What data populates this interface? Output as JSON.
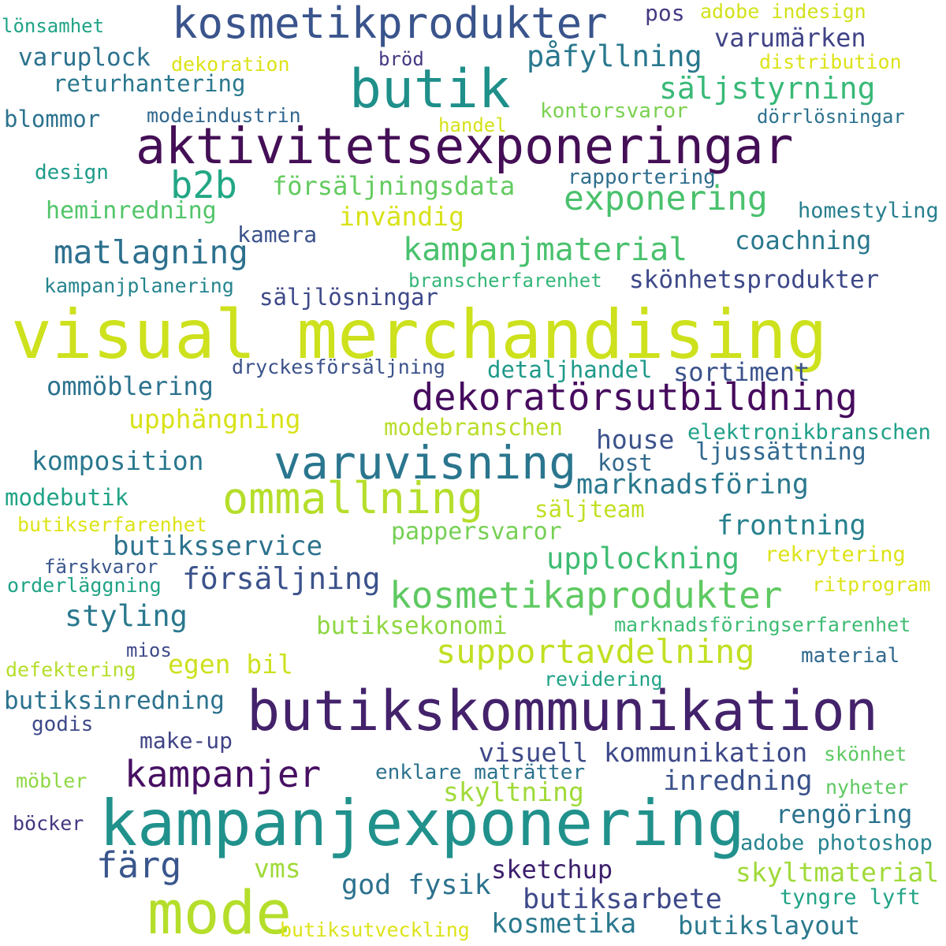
{
  "words": [
    {
      "text": "visual merchandising",
      "color": "#cde11d"
    },
    {
      "text": "aktivitetsexponeringar",
      "color": "#440f56"
    },
    {
      "text": "butikskommunikation",
      "color": "#43226b"
    },
    {
      "text": "kampanjexponering",
      "color": "#21918c"
    },
    {
      "text": "butik",
      "color": "#1f8f8a"
    },
    {
      "text": "kosmetikprodukter",
      "color": "#3a548c"
    },
    {
      "text": "mode",
      "color": "#b5de2b"
    },
    {
      "text": "varuvisning",
      "color": "#2a768e"
    },
    {
      "text": "ommallning",
      "color": "#b5de2b"
    },
    {
      "text": "dekoratörsutbildning",
      "color": "#460b5e"
    },
    {
      "text": "kosmetikaprodukter",
      "color": "#5ec962"
    },
    {
      "text": "supportavdelning",
      "color": "#c2df23"
    },
    {
      "text": "matlagning",
      "color": "#2d708e"
    },
    {
      "text": "kampanjmaterial",
      "color": "#49c16d"
    },
    {
      "text": "exponering",
      "color": "#4ac16d"
    },
    {
      "text": "b2b",
      "color": "#22a785"
    },
    {
      "text": "kampanjer",
      "color": "#471063"
    },
    {
      "text": "färg",
      "color": "#39568c"
    },
    {
      "text": "påfyllning",
      "color": "#2a788e"
    },
    {
      "text": "säljstyrning",
      "color": "#38b977"
    },
    {
      "text": "varumärken",
      "color": "#414487"
    },
    {
      "text": "varuplock",
      "color": "#2c728e"
    },
    {
      "text": "returhantering",
      "color": "#2a788e"
    },
    {
      "text": "blommor",
      "color": "#2c728e"
    },
    {
      "text": "lönsamhet",
      "color": "#20a386"
    },
    {
      "text": "pos",
      "color": "#443a83"
    },
    {
      "text": "adobe indesign",
      "color": "#d2e21b"
    },
    {
      "text": "dekoration",
      "color": "#dde318"
    },
    {
      "text": "bröd",
      "color": "#453781"
    },
    {
      "text": "distribution",
      "color": "#dde318"
    },
    {
      "text": "modeindustrin",
      "color": "#31678e"
    },
    {
      "text": "handel",
      "color": "#d5e21a"
    },
    {
      "text": "kontorsvaror",
      "color": "#7ad151"
    },
    {
      "text": "dörrlösningar",
      "color": "#2c728e"
    },
    {
      "text": "design",
      "color": "#1e9b8a"
    },
    {
      "text": "försäljningsdata",
      "color": "#63cb5f"
    },
    {
      "text": "rapportering",
      "color": "#2e6e8e"
    },
    {
      "text": "heminredning",
      "color": "#52c569"
    },
    {
      "text": "invändig",
      "color": "#d8e219"
    },
    {
      "text": "homestyling",
      "color": "#277f8e"
    },
    {
      "text": "kamera",
      "color": "#3b528b"
    },
    {
      "text": "coachning",
      "color": "#2a788e"
    },
    {
      "text": "kampanjplanering",
      "color": "#25848e"
    },
    {
      "text": "branscherfarenhet",
      "color": "#35b779"
    },
    {
      "text": "skönhetsprodukter",
      "color": "#3e4989"
    },
    {
      "text": "säljlösningar",
      "color": "#3e4989"
    },
    {
      "text": "dryckesförsäljning",
      "color": "#3b528b"
    },
    {
      "text": "detaljhandel",
      "color": "#1f9a8a"
    },
    {
      "text": "sortiment",
      "color": "#3b528b"
    },
    {
      "text": "ommöblering",
      "color": "#2c728e"
    },
    {
      "text": "upphängning",
      "color": "#d8e219"
    },
    {
      "text": "modebranschen",
      "color": "#b8de29"
    },
    {
      "text": "house",
      "color": "#3b528b"
    },
    {
      "text": "elektronikbranschen",
      "color": "#1fa088"
    },
    {
      "text": "kost",
      "color": "#31688e"
    },
    {
      "text": "ljussättning",
      "color": "#31688e"
    },
    {
      "text": "komposition",
      "color": "#2a788e"
    },
    {
      "text": "marknadsföring",
      "color": "#2a788e"
    },
    {
      "text": "modebutik",
      "color": "#20a386"
    },
    {
      "text": "säljteam",
      "color": "#c2df23"
    },
    {
      "text": "butikserfarenhet",
      "color": "#dde318"
    },
    {
      "text": "frontning",
      "color": "#26818e"
    },
    {
      "text": "pappersvaror",
      "color": "#75d054"
    },
    {
      "text": "butiksservice",
      "color": "#2c728e"
    },
    {
      "text": "försäljning",
      "color": "#3b528b"
    },
    {
      "text": "upplockning",
      "color": "#3fbc73"
    },
    {
      "text": "rekrytering",
      "color": "#dde318"
    },
    {
      "text": "färskvaror",
      "color": "#39568c"
    },
    {
      "text": "orderläggning",
      "color": "#20a386"
    },
    {
      "text": "ritprogram",
      "color": "#dde318"
    },
    {
      "text": "styling",
      "color": "#2a788e"
    },
    {
      "text": "butiksekonomi",
      "color": "#8fd744"
    },
    {
      "text": "marknadsföringserfarenhet",
      "color": "#3fbc73"
    },
    {
      "text": "mios",
      "color": "#3e4989"
    },
    {
      "text": "egen bil",
      "color": "#cde11d"
    },
    {
      "text": "material",
      "color": "#31688e"
    },
    {
      "text": "defektering",
      "color": "#b5de2b"
    },
    {
      "text": "revidering",
      "color": "#20a386"
    },
    {
      "text": "butiksinredning",
      "color": "#2c728e"
    },
    {
      "text": "godis",
      "color": "#3e4989"
    },
    {
      "text": "make-up",
      "color": "#414487"
    },
    {
      "text": "visuell kommunikation",
      "color": "#3e4989"
    },
    {
      "text": "skönhet",
      "color": "#5ec962"
    },
    {
      "text": "inredning",
      "color": "#3b528b"
    },
    {
      "text": "enklare maträtter",
      "color": "#2c728e"
    },
    {
      "text": "möbler",
      "color": "#8fd744"
    },
    {
      "text": "skyltning",
      "color": "#a0da39"
    },
    {
      "text": "rengöring",
      "color": "#2c728e"
    },
    {
      "text": "nyheter",
      "color": "#5ec962"
    },
    {
      "text": "böcker",
      "color": "#453781"
    },
    {
      "text": "adobe photoshop",
      "color": "#25838e"
    },
    {
      "text": "vms",
      "color": "#a0da39"
    },
    {
      "text": "sketchup",
      "color": "#3b1f6c"
    },
    {
      "text": "skyltmaterial",
      "color": "#a0da39"
    },
    {
      "text": "god fysik",
      "color": "#2c728e"
    },
    {
      "text": "butiksarbete",
      "color": "#3e4989"
    },
    {
      "text": "tyngre lyft",
      "color": "#20a386"
    },
    {
      "text": "butiksutveckling",
      "color": "#dde318"
    },
    {
      "text": "kosmetika",
      "color": "#2a788e"
    },
    {
      "text": "butikslayout",
      "color": "#2a788e"
    }
  ]
}
